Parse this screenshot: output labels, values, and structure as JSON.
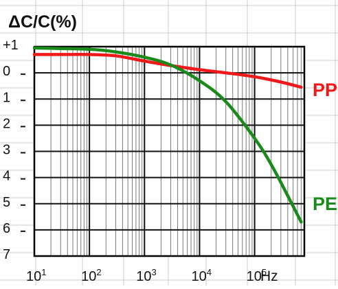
{
  "chart_data": {
    "type": "line",
    "title": "ΔC/C(%)",
    "xlabel": "",
    "ylabel": "",
    "x_scale": "log",
    "xlim": [
      10,
      800000
    ],
    "ylim": [
      -7,
      1
    ],
    "x_ticks": [
      {
        "base": "10",
        "exp": "1"
      },
      {
        "base": "10",
        "exp": "2"
      },
      {
        "base": "10",
        "exp": "3"
      },
      {
        "base": "10",
        "exp": "4"
      },
      {
        "base": "10",
        "exp": "5"
      }
    ],
    "x_unit": "Hz",
    "y_ticks": [
      {
        "value": 1,
        "label": "+1",
        "dash": false
      },
      {
        "value": 0,
        "label": "0",
        "dash": true
      },
      {
        "value": -1,
        "label": "1",
        "dash": true
      },
      {
        "value": -2,
        "label": "2",
        "dash": true
      },
      {
        "value": -3,
        "label": "3",
        "dash": true
      },
      {
        "value": -4,
        "label": "4",
        "dash": true
      },
      {
        "value": -5,
        "label": "5",
        "dash": true
      },
      {
        "value": -6,
        "label": "6",
        "dash": true
      },
      {
        "value": -7,
        "label": "7",
        "dash": false
      }
    ],
    "grid": true,
    "colors": {
      "grid_major": "#111111",
      "grid_minor": "#777777",
      "frame": "#000000",
      "outer_grid": "#cccccc",
      "text": "#111111"
    },
    "series": [
      {
        "name": "PP",
        "color": "#f01818",
        "x": [
          10,
          30,
          100,
          300,
          1000,
          3000,
          10000,
          30000,
          100000,
          300000,
          700000
        ],
        "y": [
          0.7,
          0.7,
          0.7,
          0.65,
          0.45,
          0.28,
          0.12,
          0.0,
          -0.15,
          -0.35,
          -0.55
        ]
      },
      {
        "name": "PE",
        "color": "#1a8a1a",
        "x": [
          10,
          30,
          100,
          300,
          1000,
          3000,
          10000,
          30000,
          100000,
          200000,
          400000,
          700000
        ],
        "y": [
          0.95,
          0.93,
          0.9,
          0.8,
          0.6,
          0.3,
          -0.3,
          -1.1,
          -2.5,
          -3.5,
          -4.7,
          -5.7
        ]
      }
    ]
  }
}
